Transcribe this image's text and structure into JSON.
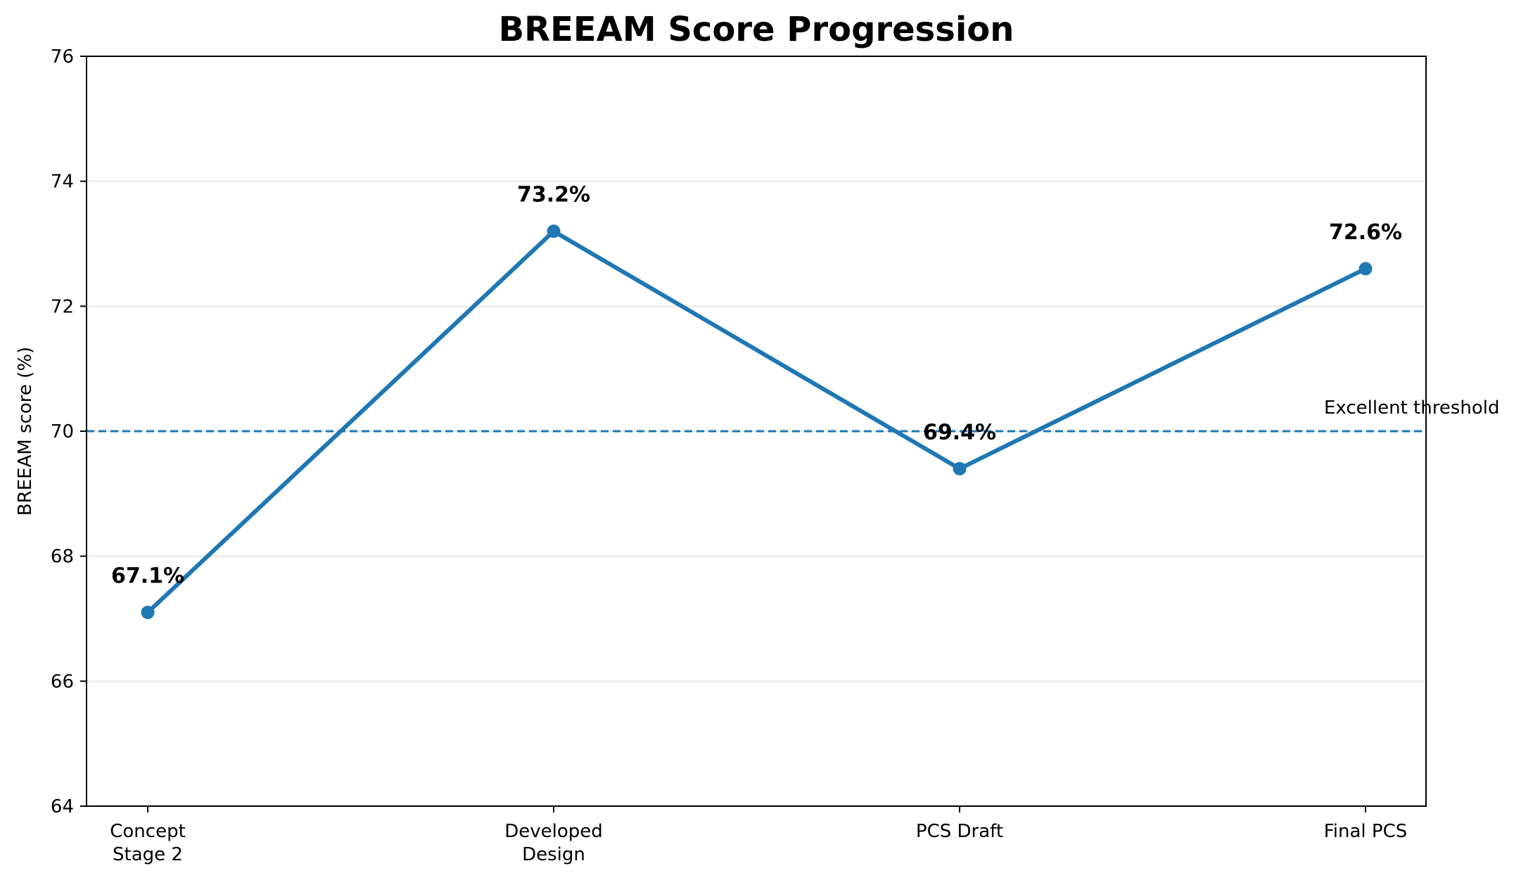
{
  "chart_data": {
    "type": "line",
    "title": "BREEAM Score Progression",
    "xlabel": "",
    "ylabel": "BREEAM score (%)",
    "categories": [
      [
        "Concept",
        "Stage 2"
      ],
      [
        "Developed",
        "Design"
      ],
      [
        "PCS Draft"
      ],
      [
        "Final PCS"
      ]
    ],
    "series": [
      {
        "values": [
          67.1,
          73.2,
          69.4,
          72.6
        ],
        "color": "#1f77b4",
        "marker": "circle"
      }
    ],
    "data_labels": [
      "67.1%",
      "73.2%",
      "69.4%",
      "72.6%"
    ],
    "ylim": [
      64,
      76
    ],
    "yticks": [
      64,
      66,
      68,
      70,
      72,
      74,
      76
    ],
    "ytick_labels": [
      "64",
      "66",
      "68",
      "70",
      "72",
      "74",
      "76"
    ],
    "grid": "horizontal",
    "reference_line": {
      "value": 70,
      "label": "Excellent threshold",
      "style": "dashed",
      "color": "#1f77b4"
    }
  }
}
